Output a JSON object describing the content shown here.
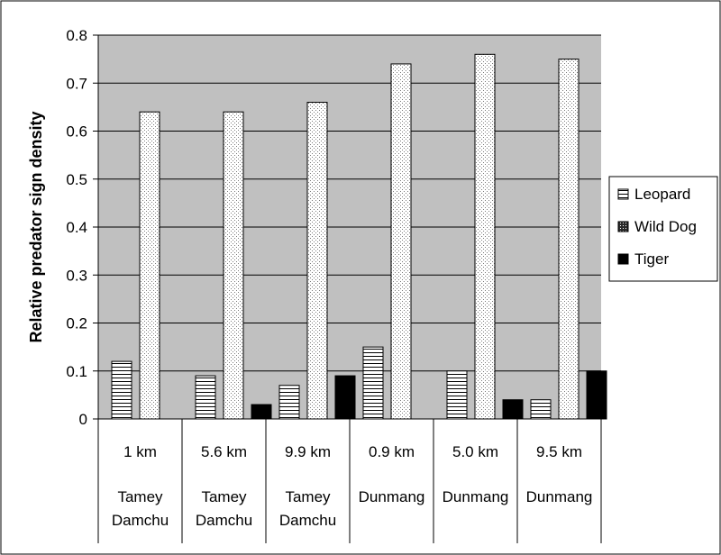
{
  "chart_data": {
    "type": "bar",
    "title": "",
    "xlabel": "",
    "ylabel": "Relative predator sign density",
    "ylim": [
      0,
      0.8
    ],
    "yticks": [
      "0",
      "0.1",
      "0.2",
      "0.3",
      "0.4",
      "0.5",
      "0.6",
      "0.7",
      "0.8"
    ],
    "grid": true,
    "legend_position": "right",
    "categories": [
      {
        "distance": "1 km",
        "site_line1": "Tamey",
        "site_line2": "Damchu"
      },
      {
        "distance": "5.6 km",
        "site_line1": "Tamey",
        "site_line2": "Damchu"
      },
      {
        "distance": "9.9 km",
        "site_line1": "Tamey",
        "site_line2": "Damchu"
      },
      {
        "distance": "0.9 km",
        "site_line1": "Dunmang",
        "site_line2": ""
      },
      {
        "distance": "5.0 km",
        "site_line1": "Dunmang",
        "site_line2": ""
      },
      {
        "distance": "9.5 km",
        "site_line1": "Dunmang",
        "site_line2": ""
      }
    ],
    "series": [
      {
        "name": "Leopard",
        "values": [
          0.12,
          0.09,
          0.07,
          0.15,
          0.1,
          0.04
        ],
        "pattern": "horizontal-lines"
      },
      {
        "name": "Wild Dog",
        "values": [
          0.64,
          0.64,
          0.66,
          0.74,
          0.76,
          0.75
        ],
        "pattern": "dots"
      },
      {
        "name": "Tiger",
        "values": [
          0.0,
          0.03,
          0.09,
          0.0,
          0.04,
          0.1
        ],
        "pattern": "solid"
      }
    ],
    "colors": {
      "plot_background": "#c0c0c0",
      "tiger": "#000000",
      "wild_dog_dots": "#7a7a7a",
      "leopard_lines": "#000000"
    }
  }
}
